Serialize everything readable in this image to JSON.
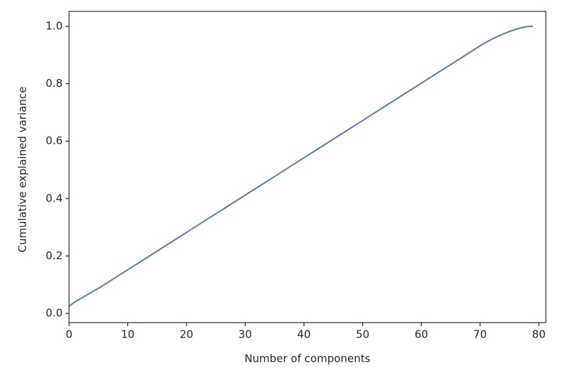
{
  "chart_data": {
    "type": "line",
    "xlabel": "Number of components",
    "ylabel": "Cumulative explained variance",
    "x": [
      0,
      1,
      2,
      3,
      4,
      5,
      6,
      7,
      8,
      9,
      10,
      11,
      12,
      13,
      14,
      15,
      16,
      17,
      18,
      19,
      20,
      21,
      22,
      23,
      24,
      25,
      26,
      27,
      28,
      29,
      30,
      31,
      32,
      33,
      34,
      35,
      36,
      37,
      38,
      39,
      40,
      41,
      42,
      43,
      44,
      45,
      46,
      47,
      48,
      49,
      50,
      51,
      52,
      53,
      54,
      55,
      56,
      57,
      58,
      59,
      60,
      61,
      62,
      63,
      64,
      65,
      66,
      67,
      68,
      69,
      70,
      71,
      72,
      73,
      74,
      75,
      76,
      77,
      78,
      79
    ],
    "series": [
      {
        "color": "#5b7ca8",
        "values": [
          0.025,
          0.04,
          0.052,
          0.064,
          0.076,
          0.087,
          0.1,
          0.113,
          0.126,
          0.139,
          0.152,
          0.165,
          0.178,
          0.191,
          0.204,
          0.217,
          0.23,
          0.243,
          0.256,
          0.269,
          0.282,
          0.295,
          0.308,
          0.321,
          0.334,
          0.347,
          0.36,
          0.373,
          0.386,
          0.399,
          0.412,
          0.425,
          0.438,
          0.451,
          0.464,
          0.477,
          0.49,
          0.503,
          0.516,
          0.529,
          0.542,
          0.555,
          0.568,
          0.581,
          0.594,
          0.607,
          0.62,
          0.633,
          0.646,
          0.659,
          0.672,
          0.685,
          0.698,
          0.711,
          0.724,
          0.737,
          0.75,
          0.763,
          0.776,
          0.789,
          0.802,
          0.815,
          0.828,
          0.841,
          0.854,
          0.867,
          0.88,
          0.893,
          0.906,
          0.919,
          0.932,
          0.944,
          0.955,
          0.965,
          0.974,
          0.982,
          0.989,
          0.995,
          0.999,
          1.0
        ]
      }
    ],
    "xlim": [
      0,
      81.2
    ],
    "xticks": [
      0,
      10,
      20,
      30,
      40,
      50,
      60,
      70,
      80
    ],
    "ylim": [
      -0.032,
      1.052
    ],
    "yticks": [
      {
        "value": 0,
        "label": "0.0"
      },
      0.2,
      0.4,
      0.6,
      0.8,
      {
        "value": 1,
        "label": "1.0"
      }
    ],
    "grid": false
  }
}
